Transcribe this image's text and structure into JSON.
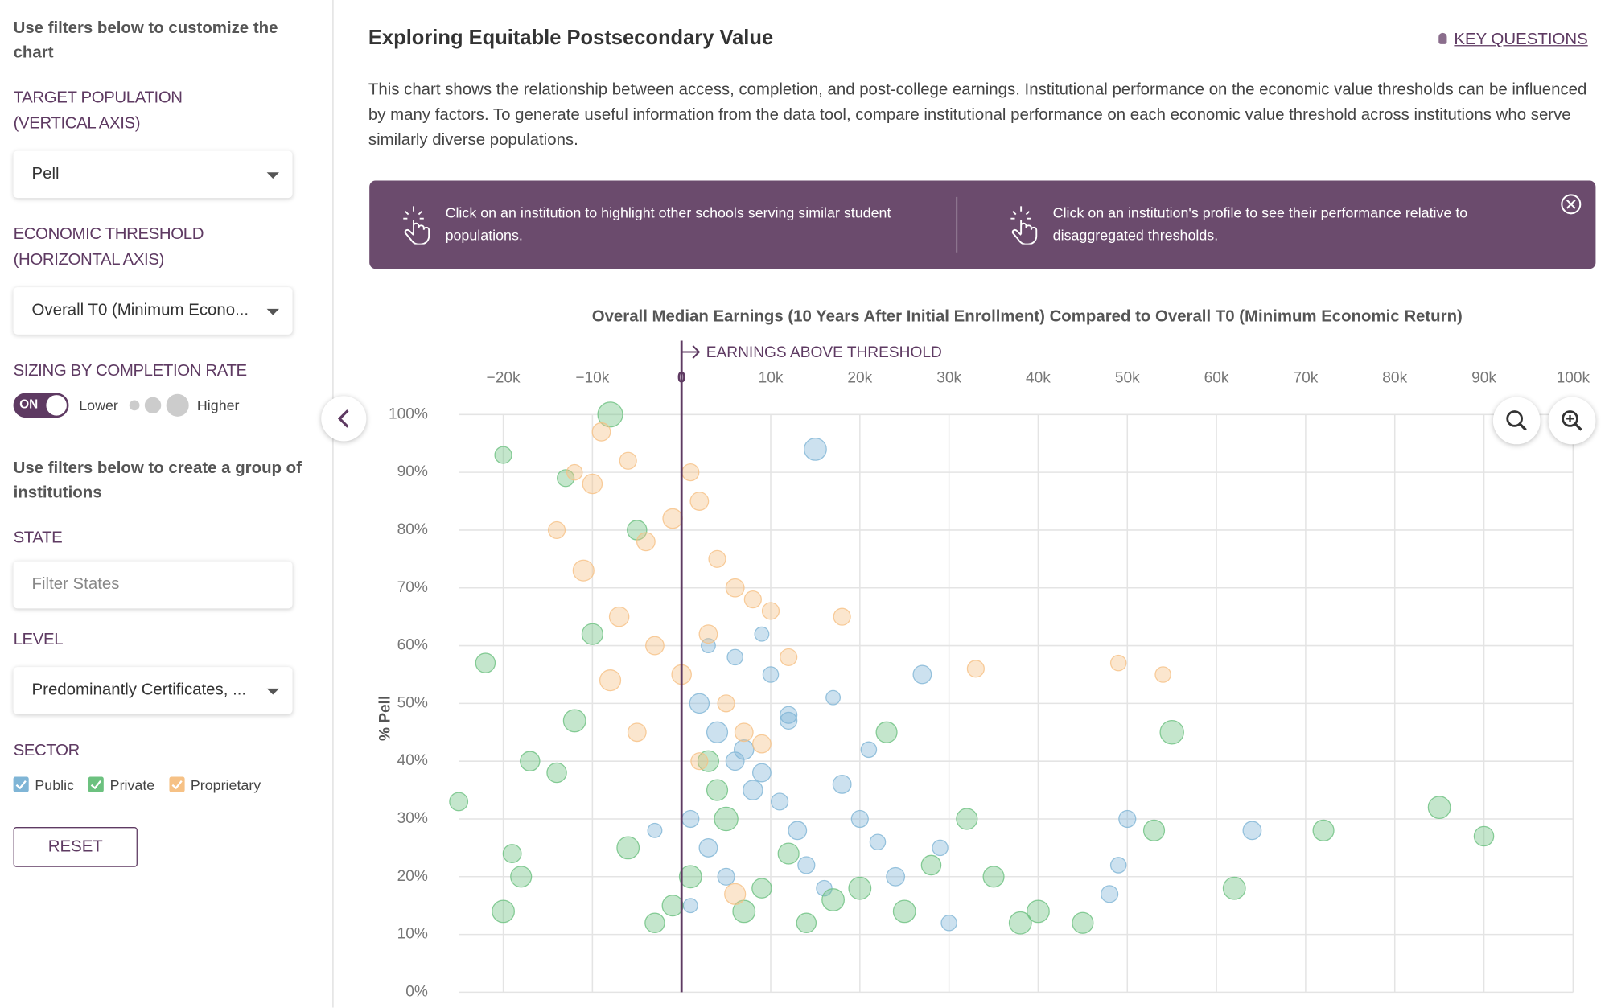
{
  "sidebar": {
    "intro": "Use filters below to customize the chart",
    "target_population_label": "TARGET POPULATION (VERTICAL AXIS)",
    "target_population_value": "Pell",
    "economic_threshold_label": "ECONOMIC THRESHOLD (HORIZONTAL AXIS)",
    "economic_threshold_value": "Overall T0 (Minimum Econo...",
    "sizing_label": "SIZING BY COMPLETION RATE",
    "toggle": "ON",
    "lower": "Lower",
    "higher": "Higher",
    "group_intro": "Use filters below to create a group of institutions",
    "state_label": "STATE",
    "state_placeholder": "Filter States",
    "level_label": "LEVEL",
    "level_value": "Predominantly Certificates, ...",
    "sector_label": "SECTOR",
    "reset": "RESET"
  },
  "header": {
    "title": "Exploring Equitable Postsecondary Value",
    "key_questions": "KEY QUESTIONS",
    "description": "This chart shows the relationship between access, completion, and post-college earnings. Institutional performance on the economic value thresholds can be influenced by many factors. To generate useful information from the data tool, compare institutional performance on each economic value threshold across institutions who serve similarly diverse populations."
  },
  "banner": {
    "tips": [
      "Click on an institution to highlight other schools serving similar student populations.",
      "Click on an institution's profile to see their performance relative to disaggregated thresholds."
    ]
  },
  "chart_data": {
    "type": "scatter",
    "title": "Overall Median Earnings (10 Years After Initial Enrollment) Compared to Overall T0 (Minimum Economic Return)",
    "annotation": "EARNINGS ABOVE THRESHOLD",
    "y_label": "% Pell",
    "xlim": [
      -25000,
      100000
    ],
    "ylim": [
      0,
      100
    ],
    "threshold": 0,
    "grid": true,
    "xticks": [
      {
        "value": -20000,
        "label": "−20k"
      },
      {
        "value": -10000,
        "label": "−10k"
      },
      0,
      {
        "value": 10000,
        "label": "10k"
      },
      {
        "value": 20000,
        "label": "20k"
      },
      {
        "value": 30000,
        "label": "30k"
      },
      {
        "value": 40000,
        "label": "40k"
      },
      {
        "value": 50000,
        "label": "50k"
      },
      {
        "value": 60000,
        "label": "60k"
      },
      {
        "value": 70000,
        "label": "70k"
      },
      {
        "value": 80000,
        "label": "80k"
      },
      {
        "value": 90000,
        "label": "90k"
      },
      {
        "value": 100000,
        "label": "100k"
      }
    ],
    "yticks": [
      {
        "value": 0,
        "label": "0%"
      },
      {
        "value": 10,
        "label": "10%"
      },
      {
        "value": 20,
        "label": "20%"
      },
      {
        "value": 30,
        "label": "30%"
      },
      {
        "value": 40,
        "label": "40%"
      },
      {
        "value": 50,
        "label": "50%"
      },
      {
        "value": 60,
        "label": "60%"
      },
      {
        "value": 70,
        "label": "70%"
      },
      {
        "value": 80,
        "label": "80%"
      },
      {
        "value": 90,
        "label": "90%"
      },
      {
        "value": 100,
        "label": "100%"
      }
    ],
    "series": [
      {
        "name": "Public",
        "color": "#7fb5d6",
        "x": [
          15000,
          2000,
          4000,
          6000,
          8000,
          1000,
          3000,
          5000,
          7000,
          9000,
          11000,
          13000,
          10000,
          12000,
          14000,
          16000,
          18000,
          20000,
          22000,
          24000,
          3000,
          6000,
          9000,
          12000,
          17000,
          27000,
          21000,
          29000,
          50000,
          64000,
          49000,
          48000,
          30000,
          -3000,
          1000
        ],
        "y": [
          94,
          50,
          45,
          40,
          35,
          30,
          25,
          20,
          42,
          38,
          33,
          28,
          55,
          48,
          22,
          18,
          36,
          30,
          26,
          20,
          60,
          58,
          62,
          47,
          51,
          55,
          42,
          25,
          30,
          28,
          22,
          17,
          12,
          28,
          15
        ],
        "sizes": [
          60,
          50,
          55,
          45,
          50,
          40,
          45,
          40,
          50,
          45,
          40,
          45,
          35,
          40,
          40,
          35,
          45,
          40,
          35,
          45,
          30,
          35,
          30,
          40,
          30,
          45,
          35,
          35,
          40,
          45,
          35,
          40,
          35,
          30,
          30
        ]
      },
      {
        "name": "Private",
        "color": "#6cc17f",
        "x": [
          -25000,
          -20000,
          -22000,
          -19000,
          -20000,
          -18000,
          -17000,
          -13000,
          -8000,
          -5000,
          -12000,
          -10000,
          -6000,
          -3000,
          -1000,
          1000,
          3000,
          5000,
          7000,
          9000,
          12000,
          14000,
          17000,
          20000,
          23000,
          25000,
          28000,
          32000,
          35000,
          40000,
          45000,
          55000,
          53000,
          72000,
          85000,
          90000,
          62000,
          38000,
          -14000,
          4000
        ],
        "y": [
          33,
          93,
          57,
          24,
          14,
          20,
          40,
          89,
          100,
          80,
          47,
          62,
          25,
          12,
          15,
          20,
          40,
          30,
          14,
          18,
          24,
          12,
          16,
          18,
          45,
          14,
          22,
          30,
          20,
          14,
          12,
          45,
          28,
          28,
          32,
          27,
          18,
          12,
          38,
          35
        ],
        "sizes": [
          45,
          40,
          50,
          45,
          60,
          55,
          50,
          40,
          70,
          50,
          60,
          55,
          60,
          50,
          55,
          60,
          55,
          65,
          60,
          50,
          55,
          50,
          60,
          60,
          55,
          60,
          50,
          55,
          55,
          60,
          55,
          65,
          55,
          55,
          60,
          50,
          60,
          60,
          50,
          55
        ]
      },
      {
        "name": "Proprietary",
        "color": "#f6c185",
        "x": [
          -9000,
          -10000,
          -6000,
          -4000,
          -1000,
          1000,
          2000,
          4000,
          6000,
          8000,
          -11000,
          -7000,
          -3000,
          0,
          3000,
          5000,
          7000,
          10000,
          12000,
          -14000,
          -8000,
          -5000,
          2000,
          9000,
          18000,
          33000,
          49000,
          54000,
          -12000,
          6000
        ],
        "y": [
          97,
          88,
          92,
          78,
          82,
          90,
          85,
          75,
          70,
          68,
          73,
          65,
          60,
          55,
          62,
          50,
          45,
          66,
          58,
          80,
          54,
          45,
          40,
          43,
          65,
          56,
          57,
          55,
          90,
          17
        ],
        "sizes": [
          45,
          50,
          40,
          45,
          50,
          40,
          45,
          40,
          45,
          40,
          55,
          50,
          45,
          50,
          45,
          40,
          45,
          40,
          40,
          40,
          55,
          45,
          40,
          45,
          40,
          40,
          35,
          35,
          35,
          55
        ]
      }
    ]
  }
}
